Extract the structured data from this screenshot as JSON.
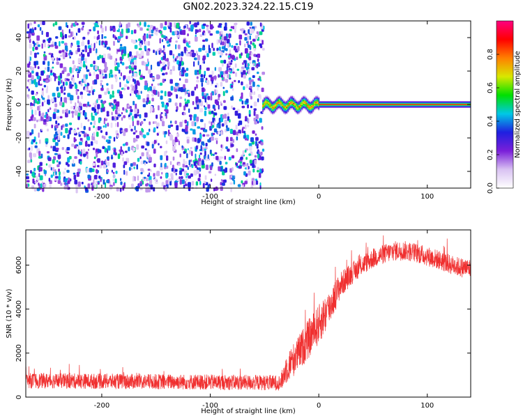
{
  "figure": {
    "title": "GN02.2023.324.22.15.C19"
  },
  "chart_data": [
    {
      "type": "heatmap",
      "xlabel": "Height of straight line (km)",
      "ylabel": "Frequency (Hz)",
      "xlim": [
        -270,
        140
      ],
      "ylim": [
        -50,
        50
      ],
      "xticks": [
        -200,
        -100,
        0,
        100
      ],
      "yticks": [
        -40,
        -20,
        0,
        20,
        40
      ],
      "colorbar": {
        "label": "Normalized spectral amplitude",
        "range": [
          0.0,
          1.0
        ],
        "ticks": [
          0.0,
          0.2,
          0.4,
          0.6,
          0.8
        ],
        "colormap": [
          "#ffffff",
          "#d9c2f2",
          "#7a1fd9",
          "#1f1fe0",
          "#00c8e6",
          "#00e000",
          "#d8e800",
          "#ff8000",
          "#ff0000",
          "#ff0080"
        ]
      },
      "regions": [
        {
          "x_range": [
            -270,
            -52
          ],
          "description_amplitude": [
            0.0,
            0.5
          ],
          "pattern": "noise"
        },
        {
          "x_range": [
            -52,
            0
          ],
          "center_frequency": 0,
          "frequency_halfwidth": 4,
          "peak_amplitude": 0.9,
          "pattern": "wavy_band"
        },
        {
          "x_range": [
            0,
            140
          ],
          "center_frequency": 0,
          "frequency_halfwidth": 2,
          "peak_amplitude": 0.95,
          "pattern": "steady_band"
        }
      ]
    },
    {
      "type": "line",
      "xlabel": "Height of straight line (km)",
      "ylabel": "SNR (10 * v/v)",
      "xlim": [
        -270,
        140
      ],
      "ylim": [
        0,
        7600
      ],
      "xticks": [
        -200,
        -100,
        0,
        100
      ],
      "yticks": [
        0,
        2000,
        4000,
        6000
      ],
      "color": "#f03030",
      "series": [
        {
          "x": [
            -270,
            -200,
            -150,
            -100,
            -60,
            -35,
            -30,
            -20,
            -10,
            0,
            5,
            10,
            15,
            20,
            30,
            40,
            50,
            60,
            70,
            80,
            90,
            100,
            110,
            120,
            130,
            140
          ],
          "values": [
            750,
            720,
            700,
            680,
            660,
            650,
            1300,
            1900,
            2600,
            3300,
            3700,
            4100,
            4600,
            5100,
            5600,
            6000,
            6300,
            6500,
            6650,
            6650,
            6550,
            6400,
            6250,
            6050,
            5900,
            5850
          ],
          "noise_amplitude": [
            350,
            350,
            350,
            350,
            350,
            350,
            700,
            800,
            900,
            900,
            900,
            800,
            700,
            600,
            500,
            450,
            450,
            450,
            450,
            450,
            450,
            450,
            450,
            450,
            450,
            450
          ]
        }
      ]
    }
  ]
}
